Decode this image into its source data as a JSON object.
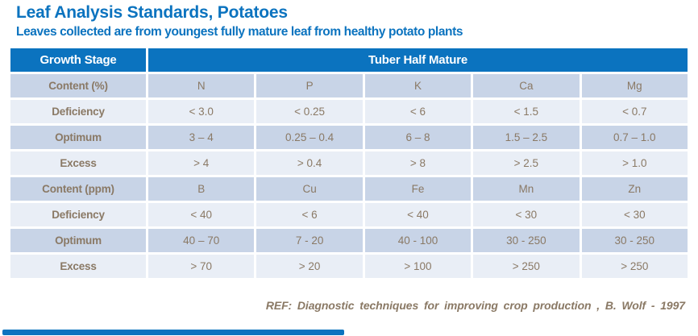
{
  "title": "Leaf Analysis Standards, Potatoes",
  "subtitle": "Leaves collected are from youngest fully mature leaf from healthy potato plants",
  "colors": {
    "accent_blue": "#0b73bf",
    "row_medium": "#c8d4e7",
    "row_light": "#e9eef6",
    "text_brown": "#8a7965"
  },
  "table": {
    "header": {
      "growth_stage": "Growth Stage",
      "stage_value": "Tuber Half Mature"
    },
    "rows": [
      {
        "label": "Content (%)",
        "values": [
          "N",
          "P",
          "K",
          "Ca",
          "Mg"
        ]
      },
      {
        "label": "Deficiency",
        "values": [
          "< 3.0",
          "< 0.25",
          "< 6",
          "< 1.5",
          "< 0.7"
        ]
      },
      {
        "label": "Optimum",
        "values": [
          "3 – 4",
          "0.25 – 0.4",
          "6 – 8",
          "1.5 – 2.5",
          "0.7 – 1.0"
        ]
      },
      {
        "label": "Excess",
        "values": [
          "> 4",
          "> 0.4",
          "> 8",
          "> 2.5",
          "> 1.0"
        ]
      },
      {
        "label": "Content (ppm)",
        "values": [
          "B",
          "Cu",
          "Fe",
          "Mn",
          "Zn"
        ]
      },
      {
        "label": "Deficiency",
        "values": [
          "< 40",
          "< 6",
          "< 40",
          "< 30",
          "< 30"
        ]
      },
      {
        "label": "Optimum",
        "values": [
          "40 – 70",
          "7 - 20",
          "40 - 100",
          "30 - 250",
          "30 - 250"
        ]
      },
      {
        "label": "Excess",
        "values": [
          "> 70",
          "> 20",
          "> 100",
          "> 250",
          "> 250"
        ]
      }
    ]
  },
  "footer": {
    "reference": "REF: Diagnostic techniques for improving crop production , B. Wolf - 1997"
  }
}
